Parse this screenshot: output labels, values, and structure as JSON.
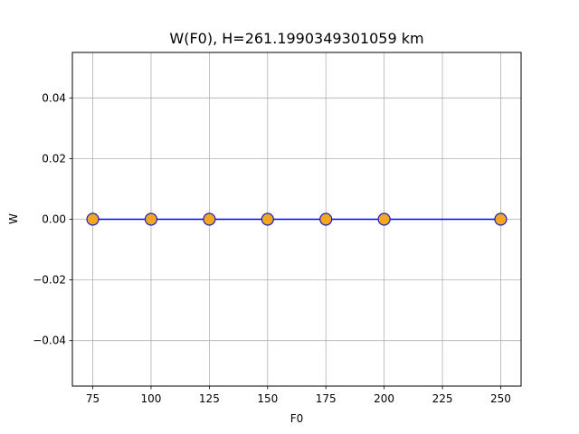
{
  "chart_data": {
    "type": "line",
    "title": "W(F0), H=261.1990349301059 km",
    "xlabel": "F0",
    "ylabel": "W",
    "x": [
      75,
      100,
      125,
      150,
      175,
      200,
      250
    ],
    "series": [
      {
        "values": [
          0,
          0,
          0,
          0,
          0,
          0,
          0
        ]
      }
    ],
    "xlim": [
      66.25,
      258.75
    ],
    "ylim": [
      -0.055,
      0.055
    ],
    "x_ticks": [
      75,
      100,
      125,
      150,
      175,
      200,
      225,
      250
    ],
    "x_tick_labels": [
      "75",
      "100",
      "125",
      "150",
      "175",
      "200",
      "225",
      "250"
    ],
    "y_ticks": [
      -0.04,
      -0.02,
      0.0,
      0.02,
      0.04
    ],
    "y_tick_labels": [
      "−0.04",
      "−0.02",
      "0.00",
      "0.02",
      "0.04"
    ],
    "grid": true,
    "line_color": "#0000ff",
    "marker_face_color": "#f5a623",
    "marker_edge_color": "#1f1fbf"
  }
}
